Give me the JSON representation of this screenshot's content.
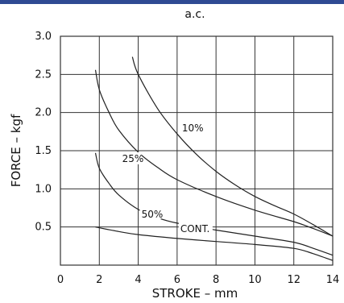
{
  "header_bar_color": "#2f4a93",
  "chart_data": {
    "type": "line",
    "title": "a.c.",
    "xlabel": "STROKE  –  mm",
    "ylabel": "FORCE  –  kgf",
    "xlim": [
      0,
      14
    ],
    "ylim": [
      0,
      3.0
    ],
    "grid": true,
    "x_ticks": [
      "0",
      "2",
      "4",
      "6",
      "8",
      "10",
      "12",
      "14"
    ],
    "y_ticks": [
      "0.5",
      "1.0",
      "1.5",
      "2.0",
      "2.5",
      "3.0"
    ],
    "series": [
      {
        "name": "10%",
        "points": [
          [
            3.7,
            2.73
          ],
          [
            4.0,
            2.5
          ],
          [
            5.0,
            2.05
          ],
          [
            6.0,
            1.72
          ],
          [
            7.0,
            1.45
          ],
          [
            8.0,
            1.23
          ],
          [
            9.0,
            1.05
          ],
          [
            10.0,
            0.9
          ],
          [
            11.0,
            0.78
          ],
          [
            12.0,
            0.67
          ],
          [
            13.0,
            0.53
          ],
          [
            14.0,
            0.38
          ]
        ]
      },
      {
        "name": "25%",
        "points": [
          [
            1.8,
            2.56
          ],
          [
            2.0,
            2.3
          ],
          [
            2.5,
            2.0
          ],
          [
            3.0,
            1.77
          ],
          [
            4.0,
            1.48
          ],
          [
            5.0,
            1.28
          ],
          [
            6.0,
            1.12
          ],
          [
            8.0,
            0.9
          ],
          [
            10.0,
            0.72
          ],
          [
            12.0,
            0.57
          ],
          [
            13.0,
            0.48
          ],
          [
            14.0,
            0.38
          ]
        ]
      },
      {
        "name": "50%",
        "points": [
          [
            1.8,
            1.47
          ],
          [
            2.0,
            1.27
          ],
          [
            2.5,
            1.07
          ],
          [
            3.0,
            0.92
          ],
          [
            4.0,
            0.73
          ],
          [
            5.0,
            0.62
          ],
          [
            6.0,
            0.55
          ],
          [
            8.0,
            0.46
          ],
          [
            10.0,
            0.38
          ],
          [
            12.0,
            0.3
          ],
          [
            13.0,
            0.22
          ],
          [
            14.0,
            0.13
          ]
        ]
      },
      {
        "name": "CONT.",
        "points": [
          [
            1.8,
            0.5
          ],
          [
            3.0,
            0.44
          ],
          [
            4.0,
            0.4
          ],
          [
            6.0,
            0.35
          ],
          [
            8.0,
            0.31
          ],
          [
            10.0,
            0.27
          ],
          [
            12.0,
            0.22
          ],
          [
            13.0,
            0.15
          ],
          [
            14.0,
            0.06
          ]
        ]
      }
    ],
    "line_color": "#222222",
    "grid_color": "#333333"
  }
}
